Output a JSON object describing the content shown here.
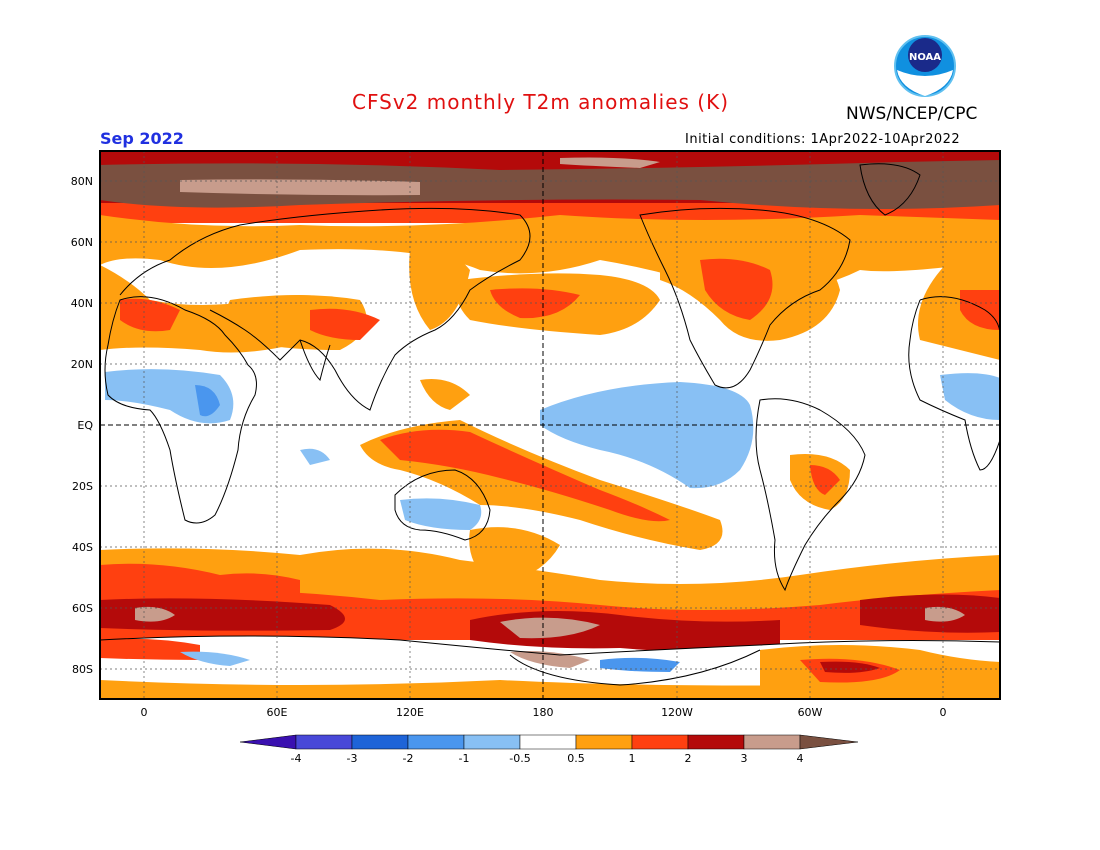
{
  "title": "CFSv2 monthly T2m anomalies (K)",
  "organization": "NWS/NCEP/CPC",
  "logo_text": "NOAA",
  "valid_month": "Sep 2022",
  "initial_conditions": "Initial conditions: 1Apr2022-10Apr2022",
  "latitude_labels": [
    "80N",
    "60N",
    "40N",
    "20N",
    "EQ",
    "20S",
    "40S",
    "60S",
    "80S"
  ],
  "longitude_labels": [
    "0",
    "60E",
    "120E",
    "180",
    "120W",
    "60W",
    "0"
  ],
  "colorbar": {
    "ticks": [
      "-4",
      "-3",
      "-2",
      "-1",
      "-0.5",
      "0.5",
      "1",
      "2",
      "3",
      "4"
    ],
    "colors": [
      "#3a10b0",
      "#4848d8",
      "#1e64d8",
      "#4a96ee",
      "#88c0f4",
      "#ffffff",
      "#ffa010",
      "#ff4010",
      "#b40a0a",
      "#c89c8c",
      "#7a5040"
    ]
  }
}
